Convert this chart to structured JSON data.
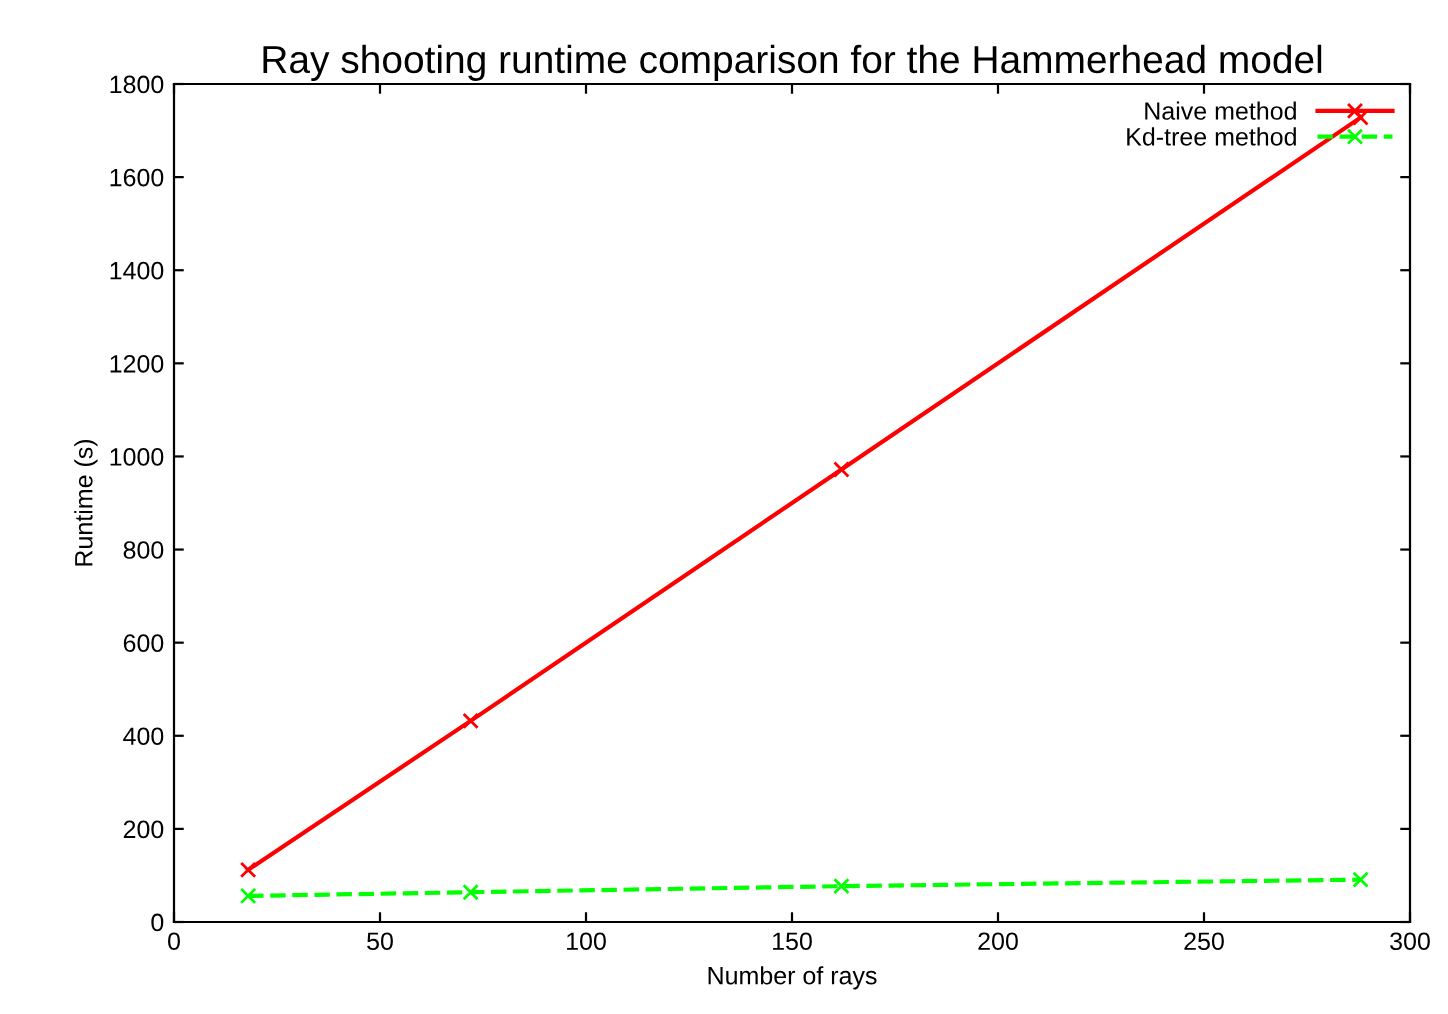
{
  "chart_data": {
    "type": "line",
    "title": "Ray shooting runtime comparison for the Hammerhead model",
    "xlabel": "Number of rays",
    "ylabel": "Runtime (s)",
    "x": [
      18,
      72,
      162,
      288
    ],
    "series": [
      {
        "name": "Naive method",
        "color": "#ff0000",
        "values": [
          112,
          432,
          972,
          1728
        ],
        "line_style": "solid",
        "marker": "cross"
      },
      {
        "name": "Kd-tree method",
        "color": "#00ff00",
        "values": [
          56,
          64,
          77,
          91
        ],
        "line_style": "dashed",
        "marker": "cross"
      }
    ],
    "xlim": [
      0,
      300
    ],
    "xticks": [
      0,
      50,
      100,
      150,
      200,
      250,
      300
    ],
    "ylim": [
      0,
      1800
    ],
    "yticks": [
      0,
      200,
      400,
      600,
      800,
      1000,
      1200,
      1400,
      1600,
      1800
    ],
    "grid": false,
    "legend": "top right"
  }
}
